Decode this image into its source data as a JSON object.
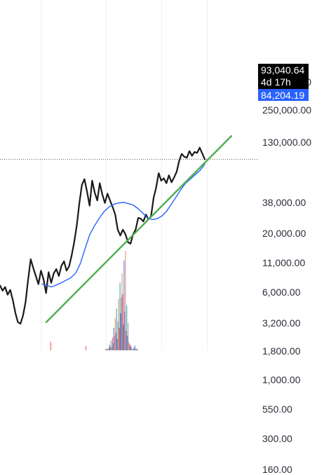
{
  "chart_data": {
    "type": "line",
    "title": "",
    "xlabel": "",
    "ylabel": "",
    "scale": "log",
    "y_ticks": [
      {
        "value": 450000,
        "label": "450,000.00"
      },
      {
        "value": 250000,
        "label": "250,000.00"
      },
      {
        "value": 130000,
        "label": "130,000.00"
      },
      {
        "value": 38000,
        "label": "38,000.00"
      },
      {
        "value": 20000,
        "label": "20,000.00"
      },
      {
        "value": 11000,
        "label": "11,000.00"
      },
      {
        "value": 6000,
        "label": "6,000.00"
      },
      {
        "value": 3200,
        "label": "3,200.00"
      },
      {
        "value": 1800,
        "label": "1,800.00"
      },
      {
        "value": 1000,
        "label": "1,000.00"
      },
      {
        "value": 550,
        "label": "550.00"
      },
      {
        "value": 300,
        "label": "300.00"
      },
      {
        "value": 160,
        "label": "160.00"
      }
    ],
    "last_price": {
      "value": 93040.64,
      "label": "93,040.64",
      "countdown": "4d 17h"
    },
    "moving_average": {
      "value": 84204.19,
      "label": "84,204.19"
    },
    "series": [
      {
        "color": "#1a1a1a",
        "values": [
          7000,
          6300,
          6800,
          5800,
          6400,
          5200,
          4000,
          3300,
          3200,
          3800,
          5000,
          8000,
          12000,
          10000,
          8500,
          7200,
          9500,
          8000,
          6000,
          9200,
          7400,
          9000,
          9800,
          8500,
          10500,
          11500,
          9500,
          10400,
          13000,
          17000,
          24000,
          38000,
          55000,
          62000,
          48000,
          36000,
          60000,
          47000,
          40000,
          57000,
          45000,
          38000,
          46000,
          40000,
          35000,
          30000,
          22000,
          19500,
          22000,
          20000,
          17000,
          16500,
          20000,
          22000,
          28000,
          27500,
          26000,
          30000,
          27000,
          29000,
          42000,
          52000,
          70000,
          60000,
          63000,
          57000,
          67000,
          58000,
          64000,
          72000,
          90000,
          104000,
          98000,
          96000,
          110000,
          100000,
          108000,
          106000,
          118000,
          105000,
          93040
        ]
      },
      {
        "color": "#2962ff",
        "values": [
          7200,
          7000,
          6800,
          7100,
          7400,
          7800,
          8200,
          9000,
          11000,
          15000,
          20000,
          24000,
          28000,
          32000,
          35000,
          37000,
          38000,
          38500,
          37500,
          36500,
          34000,
          31000,
          28000,
          27000,
          27500,
          29000,
          32000,
          37000,
          43000,
          50000,
          57000,
          62000,
          68000,
          74000,
          84204
        ]
      },
      {
        "color": "#4caf50",
        "values": [
          3300,
          150000
        ]
      }
    ],
    "volume": {
      "bars": [
        5,
        8,
        4,
        12,
        6,
        20,
        35,
        18,
        60,
        25,
        80,
        45,
        140,
        90,
        200,
        110,
        260,
        70,
        180,
        320,
        140,
        420,
        230,
        330,
        480,
        350,
        160,
        560,
        240,
        620,
        120,
        280,
        90,
        170,
        50,
        40,
        25,
        30,
        15,
        8,
        5,
        12,
        20,
        30,
        10,
        6,
        8,
        4
      ],
      "colors": [
        "#ef5350",
        "#26a69a",
        "#5b6ef5",
        "#9c8bd0",
        "#d98c5f"
      ]
    }
  }
}
